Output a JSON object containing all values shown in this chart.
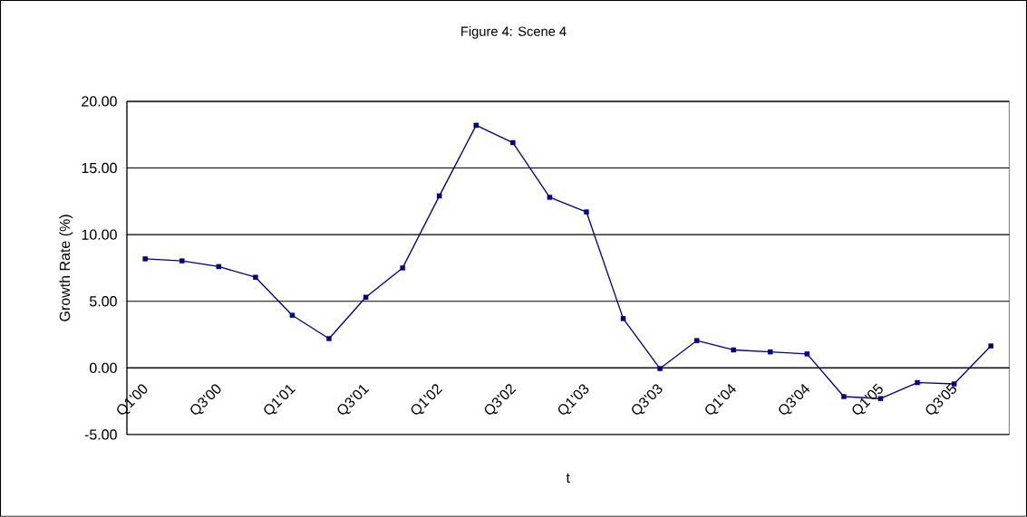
{
  "chart_data": {
    "type": "line",
    "title": "Figure 4: Scene 4",
    "xlabel": "t",
    "ylabel": "Growth Rate (%)",
    "categories": [
      "Q1'00",
      null,
      "Q3'00",
      null,
      "Q1'01",
      null,
      "Q3'01",
      null,
      "Q1'02",
      null,
      "Q3'02",
      null,
      "Q1'03",
      null,
      "Q3'03",
      null,
      "Q1'04",
      null,
      "Q3'04",
      null,
      "Q1'05",
      null,
      "Q3'05",
      null
    ],
    "series": [
      {
        "color": "#000080",
        "values": [
          8.18,
          8.03,
          7.6,
          6.8,
          3.95,
          2.2,
          5.3,
          7.5,
          12.9,
          18.2,
          16.9,
          12.8,
          11.7,
          3.7,
          -0.05,
          2.05,
          1.35,
          1.2,
          1.05,
          -2.15,
          -2.3,
          -1.1,
          -1.2,
          1.65
        ]
      }
    ],
    "ylim": [
      -5,
      20
    ],
    "yticks": [
      {
        "value": -5,
        "label": "-5.00"
      },
      {
        "value": 0,
        "label": "0.00"
      },
      {
        "value": 5,
        "label": "5.00"
      },
      {
        "value": 10,
        "label": "10.00"
      },
      {
        "value": 15,
        "label": "15.00"
      },
      {
        "value": 20,
        "label": "20.00"
      }
    ],
    "grid": "y",
    "marker": "square",
    "line_style": "solid"
  }
}
